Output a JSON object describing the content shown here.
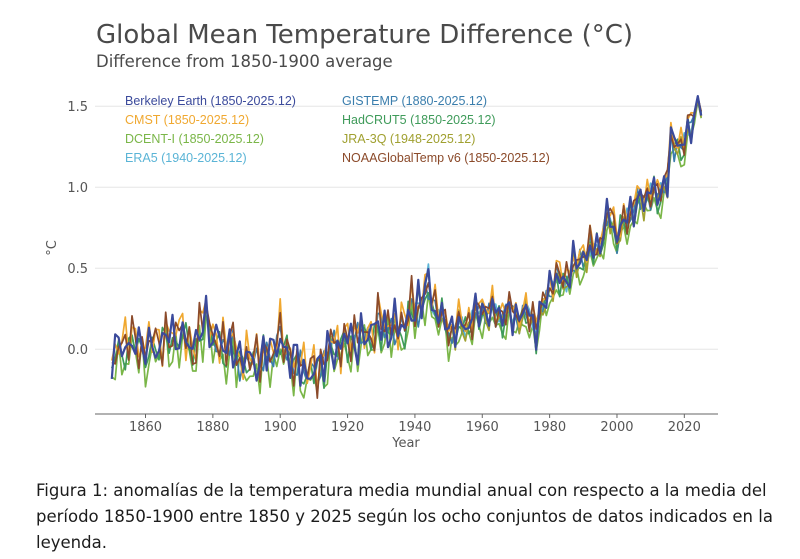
{
  "caption": "Figura 1: anomalías de la temperatura media mundial anual con respecto a la media del período 1850-1900 entre 1850 y 2025 según los ocho conjuntos de datos indicados en la leyenda.",
  "chart_data": {
    "type": "line",
    "title": "Global Mean Temperature Difference (°C)",
    "subtitle": "Difference from 1850-1900 average",
    "xlabel": "Year",
    "ylabel": "°C",
    "xlim": [
      1845,
      2030
    ],
    "ylim": [
      -0.4,
      1.6
    ],
    "x_ticks": [
      1860,
      1880,
      1900,
      1920,
      1940,
      1960,
      1980,
      2000,
      2020
    ],
    "x_tick_labels": [
      "1860",
      "1880",
      "1900",
      "1920",
      "1940",
      "1960",
      "1980",
      "2000",
      "2020"
    ],
    "y_ticks": [
      0.0,
      0.5,
      1.0,
      1.5
    ],
    "y_tick_labels": [
      "0.0",
      "0.5",
      "1.0",
      "1.5"
    ],
    "grid": "horizontal",
    "legend_position": "top-left",
    "base_series": {
      "x": [
        1850,
        1855,
        1860,
        1865,
        1870,
        1875,
        1878,
        1880,
        1885,
        1890,
        1895,
        1900,
        1905,
        1910,
        1915,
        1920,
        1925,
        1930,
        1935,
        1940,
        1944,
        1945,
        1950,
        1955,
        1960,
        1965,
        1970,
        1975,
        1976,
        1980,
        1985,
        1990,
        1995,
        1998,
        2000,
        2005,
        2010,
        2012,
        2015,
        2016,
        2020,
        2023,
        2024,
        2025
      ],
      "y": [
        -0.05,
        0.05,
        0.0,
        0.05,
        0.1,
        0.0,
        0.25,
        0.05,
        0.02,
        -0.08,
        -0.05,
        0.05,
        -0.1,
        -0.15,
        0.0,
        0.05,
        0.08,
        0.15,
        0.12,
        0.25,
        0.38,
        0.3,
        0.12,
        0.15,
        0.25,
        0.22,
        0.22,
        0.2,
        0.13,
        0.4,
        0.45,
        0.58,
        0.65,
        0.85,
        0.7,
        0.88,
        0.98,
        0.93,
        1.08,
        1.28,
        1.27,
        1.45,
        1.55,
        1.46
      ]
    },
    "series": [
      {
        "name": "Berkeley Earth (1850-2025.12)",
        "color": "#3b4a9b",
        "offset": 0.0,
        "seed": 1
      },
      {
        "name": "CMST (1850-2025.12)",
        "color": "#f0a830",
        "offset": 0.03,
        "seed": 2
      },
      {
        "name": "DCENT-I (1850-2025.12)",
        "color": "#7ab648",
        "offset": -0.08,
        "seed": 3
      },
      {
        "name": "ERA5 (1940-2025.12)",
        "color": "#5ab4d6",
        "offset": 0.0,
        "seed": 4,
        "start": 1940
      },
      {
        "name": "GISTEMP (1880-2025.12)",
        "color": "#3a7dac",
        "offset": -0.01,
        "seed": 5,
        "start": 1880
      },
      {
        "name": "HadCRUT5 (1850-2025.12)",
        "color": "#3f9b5a",
        "offset": -0.02,
        "seed": 6
      },
      {
        "name": "JRA-3Q (1948-2025.12)",
        "color": "#a0a030",
        "offset": -0.02,
        "seed": 7,
        "start": 1948
      },
      {
        "name": "NOAAGlobalTemp v6 (1850-2025.12)",
        "color": "#8b4a2a",
        "offset": 0.01,
        "seed": 8
      }
    ]
  }
}
